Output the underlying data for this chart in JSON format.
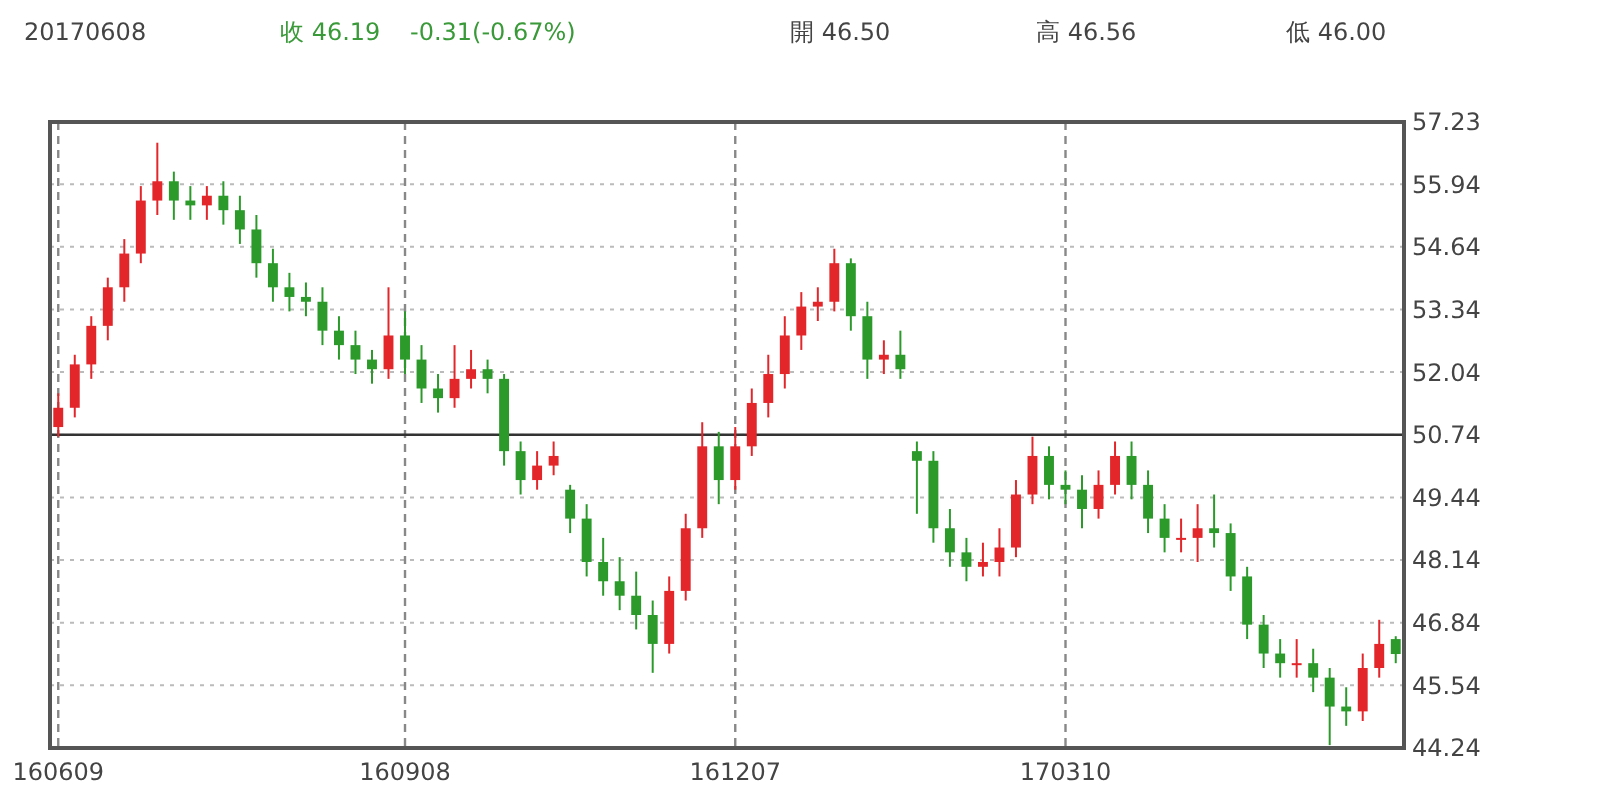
{
  "chart_data": {
    "type": "candlestick",
    "title": "20170608",
    "annotations": [
      "收 46.19",
      "-0.31(-0.67%)",
      "開 46.50",
      "高 46.56",
      "低 46.00"
    ],
    "categories": [
      "160609",
      null,
      null,
      null,
      null,
      null,
      null,
      null,
      null,
      null,
      null,
      null,
      null,
      null,
      null,
      null,
      null,
      null,
      null,
      null,
      null,
      "160908",
      null,
      null,
      null,
      null,
      null,
      null,
      null,
      null,
      null,
      null,
      null,
      null,
      null,
      null,
      null,
      null,
      null,
      null,
      null,
      "161207",
      null,
      null,
      null,
      null,
      null,
      null,
      null,
      null,
      null,
      null,
      null,
      null,
      null,
      null,
      null,
      null,
      null,
      null,
      null,
      "170310",
      null,
      null,
      null,
      null,
      null,
      null,
      null,
      null,
      null,
      null,
      null,
      null,
      null,
      null,
      null,
      null,
      null,
      null,
      null,
      null
    ],
    "ohlc": [
      [
        50.9,
        51.6,
        50.7,
        51.3
      ],
      [
        51.3,
        52.4,
        51.1,
        52.2
      ],
      [
        52.2,
        53.2,
        51.9,
        53.0
      ],
      [
        53.0,
        54.0,
        52.7,
        53.8
      ],
      [
        53.8,
        54.8,
        53.5,
        54.5
      ],
      [
        54.5,
        55.9,
        54.3,
        55.6
      ],
      [
        55.6,
        56.8,
        55.3,
        56.0
      ],
      [
        56.0,
        56.2,
        55.2,
        55.6
      ],
      [
        55.6,
        55.9,
        55.2,
        55.5
      ],
      [
        55.5,
        55.9,
        55.2,
        55.7
      ],
      [
        55.7,
        56.0,
        55.1,
        55.4
      ],
      [
        55.4,
        55.7,
        54.7,
        55.0
      ],
      [
        55.0,
        55.3,
        54.0,
        54.3
      ],
      [
        54.3,
        54.6,
        53.5,
        53.8
      ],
      [
        53.8,
        54.1,
        53.3,
        53.6
      ],
      [
        53.6,
        53.9,
        53.2,
        53.5
      ],
      [
        53.5,
        53.8,
        52.6,
        52.9
      ],
      [
        52.9,
        53.2,
        52.3,
        52.6
      ],
      [
        52.6,
        52.9,
        52.0,
        52.3
      ],
      [
        52.3,
        52.5,
        51.8,
        52.1
      ],
      [
        52.1,
        53.8,
        51.9,
        52.8
      ],
      [
        52.8,
        53.3,
        52.0,
        52.3
      ],
      [
        52.3,
        52.6,
        51.4,
        51.7
      ],
      [
        51.7,
        52.0,
        51.2,
        51.5
      ],
      [
        51.5,
        52.6,
        51.3,
        51.9
      ],
      [
        51.9,
        52.5,
        51.7,
        52.1
      ],
      [
        52.1,
        52.3,
        51.6,
        51.9
      ],
      [
        51.9,
        52.0,
        50.1,
        50.4
      ],
      [
        50.4,
        50.6,
        49.5,
        49.8
      ],
      [
        49.8,
        50.4,
        49.6,
        50.1
      ],
      [
        50.1,
        50.6,
        49.9,
        50.3
      ],
      [
        49.6,
        49.7,
        48.7,
        49.0
      ],
      [
        49.0,
        49.3,
        47.8,
        48.1
      ],
      [
        48.1,
        48.6,
        47.4,
        47.7
      ],
      [
        47.7,
        48.2,
        47.1,
        47.4
      ],
      [
        47.4,
        47.9,
        46.7,
        47.0
      ],
      [
        47.0,
        47.3,
        45.8,
        46.4
      ],
      [
        46.4,
        47.8,
        46.2,
        47.5
      ],
      [
        47.5,
        49.1,
        47.3,
        48.8
      ],
      [
        48.8,
        51.0,
        48.6,
        50.5
      ],
      [
        50.5,
        50.8,
        49.3,
        49.8
      ],
      [
        49.8,
        50.9,
        49.6,
        50.5
      ],
      [
        50.5,
        51.7,
        50.3,
        51.4
      ],
      [
        51.4,
        52.4,
        51.1,
        52.0
      ],
      [
        52.0,
        53.2,
        51.7,
        52.8
      ],
      [
        52.8,
        53.7,
        52.5,
        53.4
      ],
      [
        53.4,
        53.8,
        53.1,
        53.5
      ],
      [
        53.5,
        54.6,
        53.3,
        54.3
      ],
      [
        54.3,
        54.4,
        52.9,
        53.2
      ],
      [
        53.2,
        53.5,
        51.9,
        52.3
      ],
      [
        52.3,
        52.7,
        52.0,
        52.4
      ],
      [
        52.4,
        52.9,
        51.9,
        52.1
      ],
      [
        50.4,
        50.6,
        49.1,
        50.2
      ],
      [
        50.2,
        50.4,
        48.5,
        48.8
      ],
      [
        48.8,
        49.2,
        48.0,
        48.3
      ],
      [
        48.3,
        48.6,
        47.7,
        48.0
      ],
      [
        48.0,
        48.5,
        47.8,
        48.1
      ],
      [
        48.1,
        48.8,
        47.8,
        48.4
      ],
      [
        48.4,
        49.8,
        48.2,
        49.5
      ],
      [
        49.5,
        50.7,
        49.3,
        50.3
      ],
      [
        50.3,
        50.5,
        49.4,
        49.7
      ],
      [
        49.7,
        50.0,
        49.3,
        49.6
      ],
      [
        49.6,
        49.9,
        48.8,
        49.2
      ],
      [
        49.2,
        50.0,
        49.0,
        49.7
      ],
      [
        49.7,
        50.6,
        49.5,
        50.3
      ],
      [
        50.3,
        50.6,
        49.4,
        49.7
      ],
      [
        49.7,
        50.0,
        48.7,
        49.0
      ],
      [
        49.0,
        49.3,
        48.3,
        48.6
      ],
      [
        48.6,
        49.0,
        48.3,
        48.6
      ],
      [
        48.6,
        49.3,
        48.1,
        48.8
      ],
      [
        48.8,
        49.5,
        48.4,
        48.7
      ],
      [
        48.7,
        48.9,
        47.5,
        47.8
      ],
      [
        47.8,
        48.0,
        46.5,
        46.8
      ],
      [
        46.8,
        47.0,
        45.9,
        46.2
      ],
      [
        46.2,
        46.5,
        45.7,
        46.0
      ],
      [
        46.0,
        46.5,
        45.7,
        46.0
      ],
      [
        46.0,
        46.3,
        45.4,
        45.7
      ],
      [
        45.7,
        45.9,
        44.3,
        45.1
      ],
      [
        45.1,
        45.5,
        44.7,
        45.0
      ],
      [
        45.0,
        46.2,
        44.8,
        45.9
      ],
      [
        45.9,
        46.9,
        45.7,
        46.4
      ],
      [
        46.5,
        46.56,
        46.0,
        46.19
      ]
    ],
    "ylim": [
      44.24,
      57.23
    ],
    "yticks": [
      44.24,
      45.54,
      46.84,
      48.14,
      49.44,
      50.74,
      52.04,
      53.34,
      54.64,
      55.94,
      57.23
    ],
    "ref_lines": [
      {
        "axis": "y",
        "value": 50.74,
        "color": "#333333"
      }
    ],
    "grid": true
  }
}
